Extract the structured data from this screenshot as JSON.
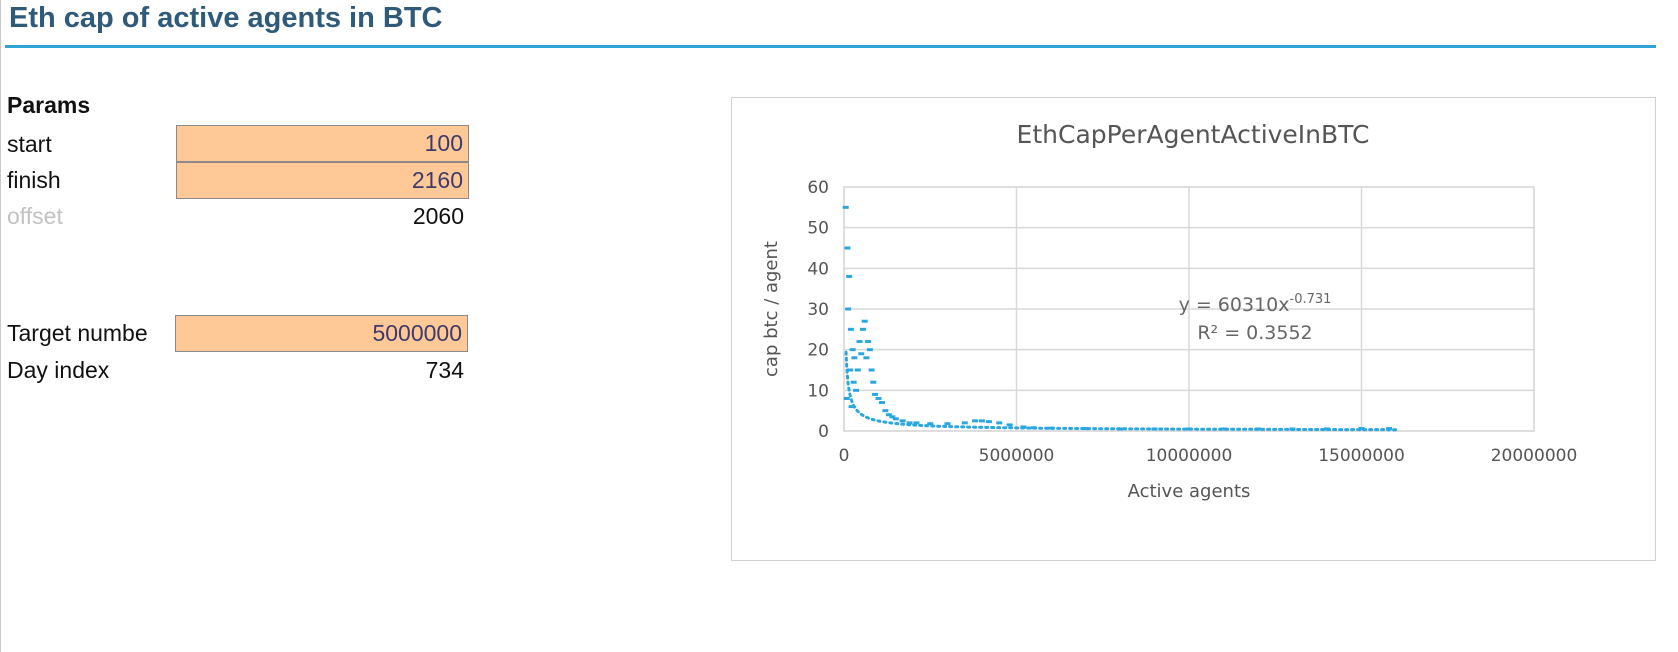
{
  "sheet": {
    "title": "Eth cap of active agents in BTC",
    "params_header": "Params",
    "rows": {
      "start": {
        "label": "start",
        "value": "100"
      },
      "finish": {
        "label": "finish",
        "value": "2160"
      },
      "offset": {
        "label": "offset",
        "value": "2060"
      },
      "target": {
        "label": "Target numbe",
        "value": "5000000"
      },
      "day": {
        "label": "Day index",
        "value": "734"
      }
    }
  },
  "colors": {
    "accent": "#2fa3d6",
    "title": "#2f5a7a",
    "input_fill": "#fec897",
    "series": "#2aa7e0"
  },
  "chart_data": {
    "type": "scatter",
    "title": "EthCapPerAgentActiveInBTC",
    "xlabel": "Active agents",
    "ylabel": "cap btc / agent",
    "xlim": [
      0,
      20000000
    ],
    "ylim": [
      0,
      60
    ],
    "xticks": [
      "0",
      "5000000",
      "10000000",
      "15000000",
      "20000000"
    ],
    "yticks": [
      "0",
      "10",
      "20",
      "30",
      "40",
      "50",
      "60"
    ],
    "grid": true,
    "trendline": {
      "type": "power",
      "a": 60310,
      "b": -0.731,
      "equation_prefix": "y = 60310x",
      "equation_exponent": "-0.731",
      "r2_label": "R² = 0.3552"
    },
    "series": [
      {
        "x": [
          50000,
          80000,
          100000,
          120000,
          150000,
          180000,
          200000,
          220000,
          250000,
          280000,
          300000,
          350000,
          400000,
          450000,
          500000,
          550000,
          600000,
          650000,
          700000,
          750000,
          800000,
          850000,
          900000,
          1000000,
          1100000,
          1200000,
          1300000,
          1400000,
          1500000,
          1700000,
          1900000,
          2100000,
          2500000,
          3000000,
          3500000,
          3800000,
          4000000,
          4200000,
          4500000,
          4800000,
          5200000,
          5500000,
          6000000,
          7000000,
          8000000,
          9000000,
          10000000,
          11000000,
          12000000,
          13000000,
          14000000,
          15000000,
          15800000
        ],
        "y": [
          55,
          8,
          45,
          30,
          38,
          15,
          25,
          6,
          20,
          12,
          18,
          10,
          15,
          22,
          19,
          25,
          27,
          18,
          22,
          20,
          15,
          12,
          9,
          8,
          7,
          5,
          4,
          3.5,
          3,
          2.5,
          2,
          2,
          1.8,
          1.8,
          2,
          2.5,
          2.5,
          2.3,
          2,
          1.5,
          1,
          0.8,
          0.7,
          0.6,
          0.5,
          0.5,
          0.5,
          0.5,
          0.5,
          0.5,
          0.5,
          0.6,
          0.6
        ]
      }
    ]
  }
}
